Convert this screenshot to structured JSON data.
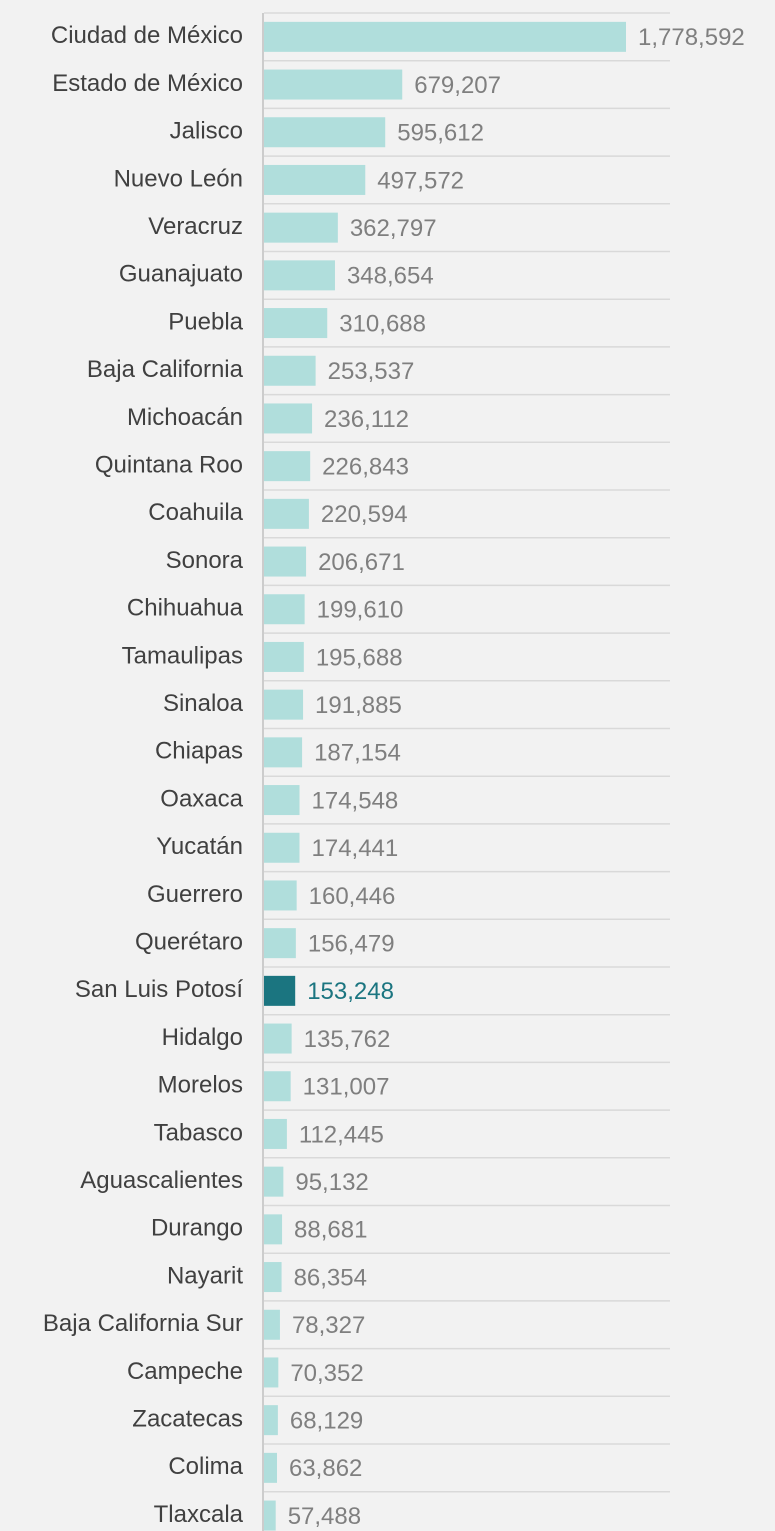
{
  "chart_data": {
    "type": "bar",
    "orientation": "horizontal",
    "categories": [
      "Ciudad de México",
      "Estado de México",
      "Jalisco",
      "Nuevo León",
      "Veracruz",
      "Guanajuato",
      "Puebla",
      "Baja California",
      "Michoacán",
      "Quintana Roo",
      "Coahuila",
      "Sonora",
      "Chihuahua",
      "Tamaulipas",
      "Sinaloa",
      "Chiapas",
      "Oaxaca",
      "Yucatán",
      "Guerrero",
      "Querétaro",
      "San Luis Potosí",
      "Hidalgo",
      "Morelos",
      "Tabasco",
      "Aguascalientes",
      "Durango",
      "Nayarit",
      "Baja California Sur",
      "Campeche",
      "Zacatecas",
      "Colima",
      "Tlaxcala"
    ],
    "values": [
      1778592,
      679207,
      595612,
      497572,
      362797,
      348654,
      310688,
      253537,
      236112,
      226843,
      220594,
      206671,
      199610,
      195688,
      191885,
      187154,
      174548,
      174441,
      160446,
      156479,
      153248,
      135762,
      131007,
      112445,
      95132,
      88681,
      86354,
      78327,
      70352,
      68129,
      63862,
      57488
    ],
    "value_labels": [
      "1,778,592",
      "679,207",
      "595,612",
      "497,572",
      "362,797",
      "348,654",
      "310,688",
      "253,537",
      "236,112",
      "226,843",
      "220,594",
      "206,671",
      "199,610",
      "195,688",
      "191,885",
      "187,154",
      "174,548",
      "174,441",
      "160,446",
      "156,479",
      "153,248",
      "135,762",
      "131,007",
      "112,445",
      "95,132",
      "88,681",
      "86,354",
      "78,327",
      "70,352",
      "68,129",
      "63,862",
      "57,488"
    ],
    "color": "#b0dedc",
    "highlight": {
      "index": 20,
      "color": "#1b7580"
    }
  }
}
